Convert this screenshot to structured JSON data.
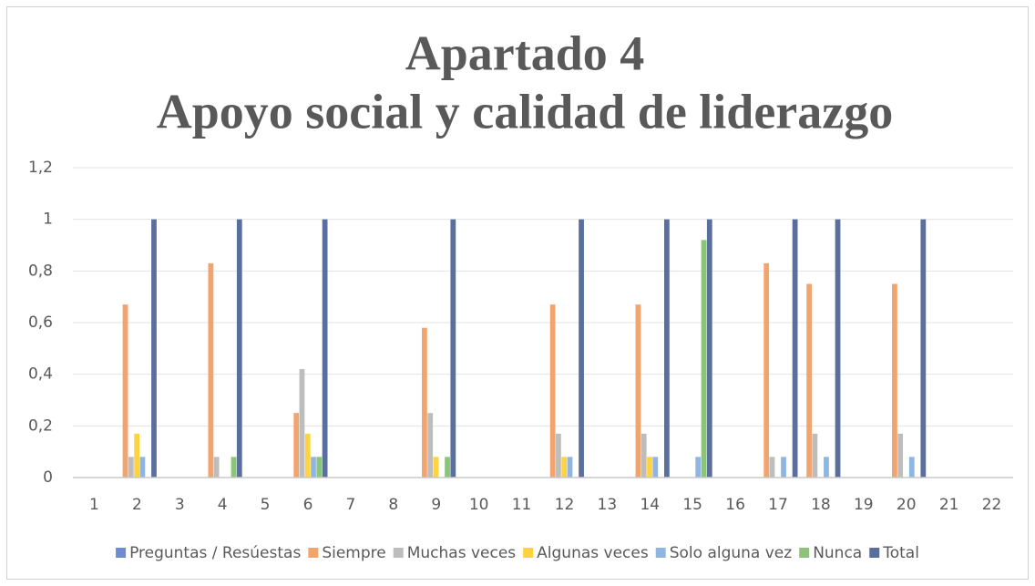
{
  "chart_data": {
    "type": "bar",
    "title": "Apartado 4",
    "subtitle": "Apoyo social y calidad de liderazgo",
    "categories": [
      "1",
      "2",
      "3",
      "4",
      "5",
      "6",
      "7",
      "8",
      "9",
      "10",
      "11",
      "12",
      "13",
      "14",
      "15",
      "16",
      "17",
      "18",
      "19",
      "20",
      "21",
      "22"
    ],
    "series": [
      {
        "name": "Preguntas / Resúestas",
        "color": "#6c8ed0",
        "values": [
          0,
          0,
          0,
          0,
          0,
          0,
          0,
          0,
          0,
          0,
          0,
          0,
          0,
          0,
          0,
          0,
          0,
          0,
          0,
          0,
          0,
          0
        ]
      },
      {
        "name": "Siempre",
        "color": "#f2a46f",
        "values": [
          0,
          0.67,
          0,
          0.83,
          0,
          0.25,
          0,
          0,
          0.58,
          0,
          0,
          0.67,
          0,
          0.67,
          0,
          0,
          0.83,
          0.75,
          0,
          0.75,
          0,
          0
        ]
      },
      {
        "name": "Muchas veces",
        "color": "#bdbdbd",
        "values": [
          0,
          0.08,
          0,
          0.08,
          0,
          0.42,
          0,
          0,
          0.25,
          0,
          0,
          0.17,
          0,
          0.17,
          0,
          0,
          0.08,
          0.17,
          0,
          0.17,
          0,
          0
        ]
      },
      {
        "name": "Algunas veces",
        "color": "#ffd23f",
        "values": [
          0,
          0.17,
          0,
          0,
          0,
          0.17,
          0,
          0,
          0.08,
          0,
          0,
          0.08,
          0,
          0.08,
          0,
          0,
          0,
          0,
          0,
          0,
          0,
          0
        ]
      },
      {
        "name": "Solo alguna vez",
        "color": "#8fb6e0",
        "values": [
          0,
          0.08,
          0,
          0,
          0,
          0.08,
          0,
          0,
          0,
          0,
          0,
          0.08,
          0,
          0.08,
          0.08,
          0,
          0.08,
          0.08,
          0,
          0.08,
          0,
          0
        ]
      },
      {
        "name": "Nunca",
        "color": "#8cc47a",
        "values": [
          0,
          0,
          0,
          0.08,
          0,
          0.08,
          0,
          0,
          0.08,
          0,
          0,
          0,
          0,
          0,
          0.92,
          0,
          0,
          0,
          0,
          0,
          0,
          0
        ]
      },
      {
        "name": "Total",
        "color": "#5a6f9c",
        "values": [
          0,
          1,
          0,
          1,
          0,
          1,
          0,
          0,
          1,
          0,
          0,
          1,
          0,
          1,
          1,
          0,
          1,
          1,
          0,
          1,
          0,
          0
        ]
      }
    ],
    "ylim": [
      0,
      1.2
    ],
    "yticks": [
      0,
      {
        "value": 0.2,
        "label": "0,2"
      },
      {
        "value": 0.4,
        "label": "0,4"
      },
      {
        "value": 0.6,
        "label": "0,6"
      },
      {
        "value": 0.8,
        "label": "0,8"
      },
      1,
      {
        "value": 1.2,
        "label": "1,2"
      }
    ],
    "grid": true,
    "legend": "bottom"
  }
}
